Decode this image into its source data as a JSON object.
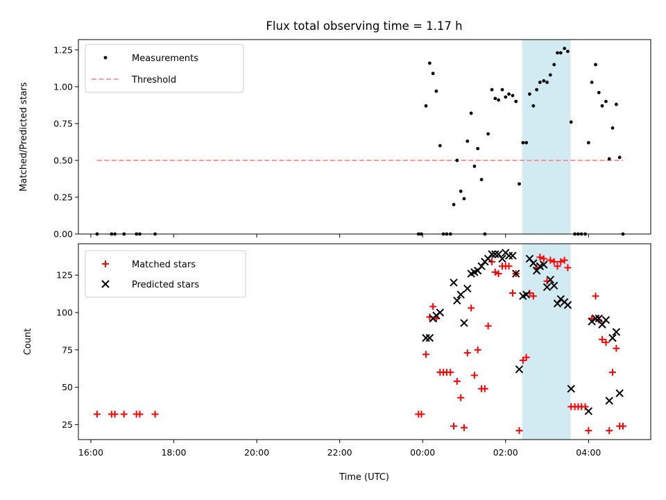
{
  "chart_data": [
    {
      "type": "scatter",
      "title": "Flux total observing time = 1.17 h",
      "xlabel": "",
      "ylabel": "Matched/Predicted stars",
      "xlim": [
        -8.3,
        5.5
      ],
      "ylim": [
        0,
        1.32
      ],
      "yticks": [
        0,
        0.25,
        0.5,
        0.75,
        1.0,
        1.25
      ],
      "ytick_labels": [
        "0.00",
        "0.25",
        "0.50",
        "0.75",
        "1.00",
        "1.25"
      ],
      "shaded_region": [
        2.4,
        3.57
      ],
      "legend_position": "upper-left",
      "series": [
        {
          "name": "Measurements",
          "kind": "scatter",
          "color": "#000000",
          "points": [
            [
              -7.85,
              0
            ],
            [
              -7.5,
              0
            ],
            [
              -7.42,
              0
            ],
            [
              -7.2,
              0
            ],
            [
              -6.9,
              0
            ],
            [
              -6.82,
              0
            ],
            [
              -6.45,
              0
            ],
            [
              -0.1,
              0
            ],
            [
              -0.03,
              0
            ],
            [
              0.08,
              0.87
            ],
            [
              0.17,
              1.16
            ],
            [
              0.25,
              1.09
            ],
            [
              0.33,
              0.97
            ],
            [
              0.42,
              0.6
            ],
            [
              0.5,
              0
            ],
            [
              0.58,
              0
            ],
            [
              0.67,
              0
            ],
            [
              0.75,
              0.2
            ],
            [
              0.83,
              0.5
            ],
            [
              0.92,
              0.29
            ],
            [
              1.0,
              0.24
            ],
            [
              1.08,
              0.63
            ],
            [
              1.17,
              0.82
            ],
            [
              1.25,
              0.46
            ],
            [
              1.33,
              0.58
            ],
            [
              1.42,
              0.37
            ],
            [
              1.5,
              0
            ],
            [
              1.58,
              0.68
            ],
            [
              1.67,
              0.98
            ],
            [
              1.75,
              0.92
            ],
            [
              1.83,
              0.91
            ],
            [
              1.92,
              0.98
            ],
            [
              2.0,
              0.93
            ],
            [
              2.08,
              0.95
            ],
            [
              2.17,
              0.94
            ],
            [
              2.25,
              0.9
            ],
            [
              2.33,
              0.34
            ],
            [
              2.42,
              0.62
            ],
            [
              2.5,
              0.62
            ],
            [
              2.58,
              0.95
            ],
            [
              2.67,
              0.87
            ],
            [
              2.75,
              0.98
            ],
            [
              2.83,
              1.03
            ],
            [
              2.92,
              1.04
            ],
            [
              3.0,
              1.03
            ],
            [
              3.08,
              1.08
            ],
            [
              3.17,
              1.15
            ],
            [
              3.25,
              1.23
            ],
            [
              3.33,
              1.23
            ],
            [
              3.42,
              1.26
            ],
            [
              3.5,
              1.24
            ],
            [
              3.58,
              0.76
            ],
            [
              3.67,
              0
            ],
            [
              3.75,
              0
            ],
            [
              3.83,
              0
            ],
            [
              3.92,
              0
            ],
            [
              4.0,
              0.62
            ],
            [
              4.08,
              1.03
            ],
            [
              4.17,
              1.15
            ],
            [
              4.25,
              0.96
            ],
            [
              4.33,
              0.87
            ],
            [
              4.42,
              0.9
            ],
            [
              4.5,
              0.51
            ],
            [
              4.58,
              0.72
            ],
            [
              4.67,
              0.88
            ],
            [
              4.75,
              0.52
            ],
            [
              4.83,
              0
            ]
          ]
        },
        {
          "name": "Threshold",
          "kind": "line",
          "color": "#ff7f7f",
          "x": [
            -7.85,
            4.83
          ],
          "y": [
            0.5,
            0.5
          ]
        }
      ]
    },
    {
      "type": "scatter",
      "title": "",
      "xlabel": "Time (UTC)",
      "ylabel": "Count",
      "xlim": [
        -8.3,
        5.5
      ],
      "ylim": [
        15,
        146
      ],
      "xticks": [
        -8,
        -6,
        -4,
        -2,
        0,
        2,
        4
      ],
      "xtick_labels": [
        "16:00",
        "18:00",
        "20:00",
        "22:00",
        "00:00",
        "02:00",
        "04:00"
      ],
      "yticks": [
        25,
        50,
        75,
        100,
        125
      ],
      "ytick_labels": [
        "25",
        "50",
        "75",
        "100",
        "125"
      ],
      "shaded_region": [
        2.4,
        3.57
      ],
      "legend_position": "upper-left",
      "series": [
        {
          "name": "Matched stars",
          "kind": "plus",
          "color": "#ff0000",
          "points": [
            [
              -7.85,
              32
            ],
            [
              -7.5,
              32
            ],
            [
              -7.42,
              32
            ],
            [
              -7.2,
              32
            ],
            [
              -6.9,
              32
            ],
            [
              -6.82,
              32
            ],
            [
              -6.45,
              32
            ],
            [
              -0.1,
              32
            ],
            [
              -0.03,
              32
            ],
            [
              0.08,
              72
            ],
            [
              0.17,
              97
            ],
            [
              0.25,
              104
            ],
            [
              0.33,
              96
            ],
            [
              0.42,
              60
            ],
            [
              0.5,
              60
            ],
            [
              0.58,
              60
            ],
            [
              0.67,
              60
            ],
            [
              0.75,
              24
            ],
            [
              0.83,
              54
            ],
            [
              0.92,
              43
            ],
            [
              1.0,
              23
            ],
            [
              1.08,
              73
            ],
            [
              1.17,
              103
            ],
            [
              1.25,
              58
            ],
            [
              1.33,
              75
            ],
            [
              1.42,
              49
            ],
            [
              1.5,
              49
            ],
            [
              1.58,
              91
            ],
            [
              1.67,
              134
            ],
            [
              1.75,
              127
            ],
            [
              1.83,
              126
            ],
            [
              1.92,
              131
            ],
            [
              2.0,
              131
            ],
            [
              2.08,
              131
            ],
            [
              2.17,
              113
            ],
            [
              2.25,
              126
            ],
            [
              2.33,
              21
            ],
            [
              2.42,
              68
            ],
            [
              2.5,
              70
            ],
            [
              2.58,
              113
            ],
            [
              2.67,
              111
            ],
            [
              2.75,
              130
            ],
            [
              2.83,
              137
            ],
            [
              2.92,
              136
            ],
            [
              3.0,
              121
            ],
            [
              3.08,
              135
            ],
            [
              3.17,
              134
            ],
            [
              3.25,
              131
            ],
            [
              3.33,
              134
            ],
            [
              3.42,
              135
            ],
            [
              3.5,
              130
            ],
            [
              3.58,
              37
            ],
            [
              3.67,
              37
            ],
            [
              3.75,
              37
            ],
            [
              3.83,
              37
            ],
            [
              3.92,
              37
            ],
            [
              4.0,
              21
            ],
            [
              4.08,
              96
            ],
            [
              4.17,
              111
            ],
            [
              4.25,
              95
            ],
            [
              4.33,
              82
            ],
            [
              4.42,
              80
            ],
            [
              4.5,
              21
            ],
            [
              4.58,
              60
            ],
            [
              4.67,
              76
            ],
            [
              4.75,
              24
            ],
            [
              4.83,
              24
            ]
          ]
        },
        {
          "name": "Predicted stars",
          "kind": "x",
          "color": "#000000",
          "points": [
            [
              0.08,
              83
            ],
            [
              0.17,
              83
            ],
            [
              0.25,
              96
            ],
            [
              0.33,
              98
            ],
            [
              0.42,
              100
            ],
            [
              0.75,
              120
            ],
            [
              0.83,
              108
            ],
            [
              0.92,
              112
            ],
            [
              1.0,
              93
            ],
            [
              1.08,
              116
            ],
            [
              1.17,
              126
            ],
            [
              1.25,
              127
            ],
            [
              1.33,
              128
            ],
            [
              1.42,
              131
            ],
            [
              1.5,
              134
            ],
            [
              1.58,
              136
            ],
            [
              1.67,
              139
            ],
            [
              1.75,
              139
            ],
            [
              1.83,
              139
            ],
            [
              1.92,
              136
            ],
            [
              2.0,
              140
            ],
            [
              2.08,
              138
            ],
            [
              2.17,
              138
            ],
            [
              2.25,
              126
            ],
            [
              2.33,
              62
            ],
            [
              2.42,
              111
            ],
            [
              2.5,
              112
            ],
            [
              2.58,
              136
            ],
            [
              2.67,
              133
            ],
            [
              2.75,
              128
            ],
            [
              2.83,
              131
            ],
            [
              2.92,
              132
            ],
            [
              3.0,
              117
            ],
            [
              3.08,
              122
            ],
            [
              3.17,
              118
            ],
            [
              3.25,
              106
            ],
            [
              3.33,
              109
            ],
            [
              3.42,
              107
            ],
            [
              3.5,
              105
            ],
            [
              3.58,
              49
            ],
            [
              4.0,
              34
            ],
            [
              4.08,
              94
            ],
            [
              4.17,
              96
            ],
            [
              4.25,
              96
            ],
            [
              4.33,
              92
            ],
            [
              4.42,
              95
            ],
            [
              4.5,
              41
            ],
            [
              4.58,
              83
            ],
            [
              4.67,
              87
            ],
            [
              4.75,
              46
            ]
          ]
        }
      ]
    }
  ]
}
